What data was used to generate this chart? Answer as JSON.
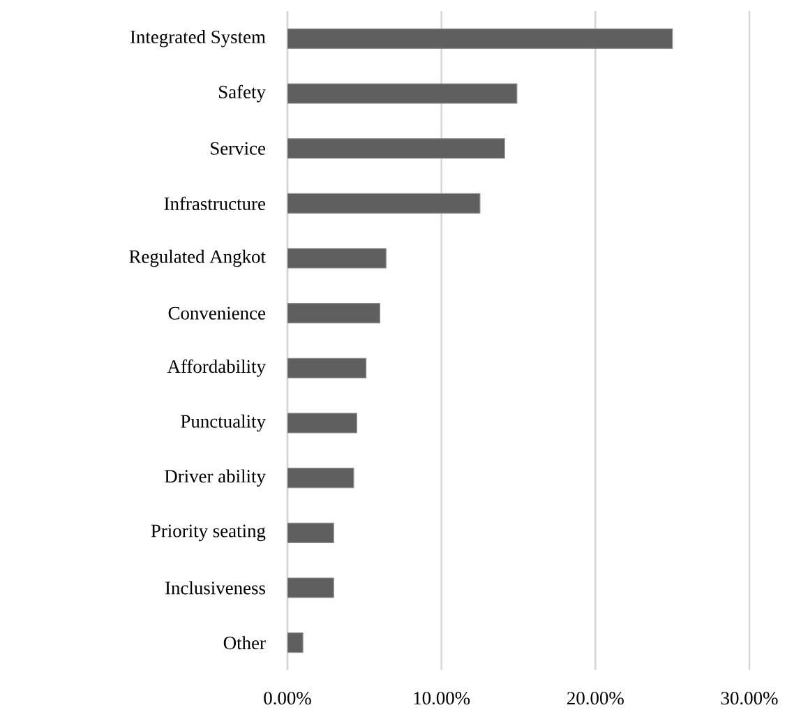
{
  "chart_data": {
    "type": "bar",
    "orientation": "horizontal",
    "categories": [
      "Integrated System",
      "Safety",
      "Service",
      "Infrastructure",
      "Regulated Angkot",
      "Convenience",
      "Affordability",
      "Punctuality",
      "Driver ability",
      "Priority seating",
      "Inclusiveness",
      "Other"
    ],
    "values": [
      25.0,
      14.9,
      14.1,
      12.5,
      6.4,
      6.0,
      5.1,
      4.5,
      4.3,
      3.0,
      3.0,
      1.0
    ],
    "color": "#5f5f5f",
    "xlim": [
      0,
      30
    ],
    "xticks": [
      {
        "value": 0,
        "label": "0.00%"
      },
      {
        "value": 10,
        "label": "10.00%"
      },
      {
        "value": 20,
        "label": "20.00%"
      },
      {
        "value": 30,
        "label": "30.00%"
      }
    ],
    "grid": "x"
  }
}
